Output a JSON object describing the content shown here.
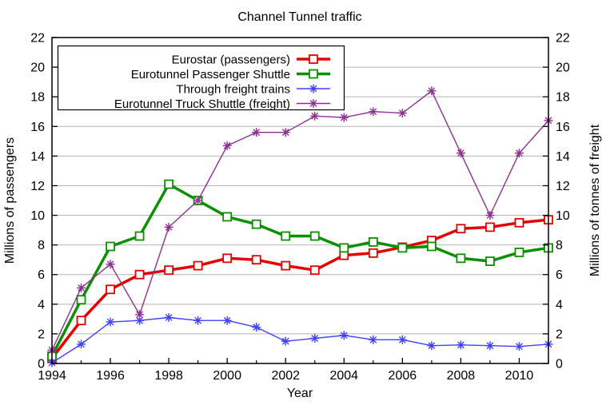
{
  "figure": {
    "background": "#ffffff",
    "grid_color": "#b3b3b3",
    "axis_color": "#000000"
  },
  "title": "Channel Tunnel traffic",
  "axes": {
    "x": {
      "label": "Year",
      "min": 1994,
      "max": 2011,
      "major_tick_labels": [
        "1994",
        "1996",
        "1998",
        "2000",
        "2002",
        "2004",
        "2006",
        "2008",
        "2010"
      ],
      "major_tick_years": [
        1994,
        1996,
        1998,
        2000,
        2002,
        2004,
        2006,
        2008,
        2010
      ],
      "minor_tick_years": [
        1995,
        1997,
        1999,
        2001,
        2003,
        2005,
        2007,
        2009,
        2011
      ]
    },
    "y_left": {
      "label": "Millions of passengers",
      "min": 0,
      "max": 22,
      "tick_values": [
        0,
        2,
        4,
        6,
        8,
        10,
        12,
        14,
        16,
        18,
        20,
        22
      ],
      "tick_labels": [
        "0",
        "2",
        "4",
        "6",
        "8",
        "10",
        "12",
        "14",
        "16",
        "18",
        "20",
        "22"
      ]
    },
    "y_right": {
      "label": "Millions of tonnes of freight",
      "min": 0,
      "max": 22,
      "tick_values": [
        0,
        2,
        4,
        6,
        8,
        10,
        12,
        14,
        16,
        18,
        20,
        22
      ],
      "tick_labels": [
        "0",
        "2",
        "4",
        "6",
        "8",
        "10",
        "12",
        "14",
        "16",
        "18",
        "20",
        "22"
      ]
    }
  },
  "legend": {
    "position": "top-left",
    "entries": [
      "Eurostar (passengers)",
      "Eurotunnel Passenger Shuttle",
      "Through freight trains",
      "Eurotunnel Truck Shuttle (freight)"
    ]
  },
  "chart_data": {
    "type": "line",
    "title": "Channel Tunnel traffic",
    "xlabel": "Year",
    "ylabel_left": "Millions of passengers",
    "ylabel_right": "Millions of tonnes of freight",
    "xlim": [
      1994,
      2011
    ],
    "ylim": [
      0,
      22
    ],
    "grid": true,
    "legend_position": "top-left",
    "x": [
      1994,
      1995,
      1996,
      1997,
      1998,
      1999,
      2000,
      2001,
      2002,
      2003,
      2004,
      2005,
      2006,
      2007,
      2008,
      2009,
      2010,
      2011
    ],
    "series": [
      {
        "name": "Eurostar (passengers)",
        "axis": "left",
        "unit": "millions of passengers",
        "color": "#e50000",
        "marker": "square",
        "line_width": 3.5,
        "values": [
          0.35,
          2.9,
          5.0,
          6.0,
          6.3,
          6.6,
          7.1,
          7.0,
          6.6,
          6.3,
          7.3,
          7.45,
          7.85,
          8.3,
          9.1,
          9.2,
          9.5,
          9.7
        ]
      },
      {
        "name": "Eurotunnel Passenger Shuttle",
        "axis": "left",
        "unit": "millions of passengers",
        "color": "#0a9000",
        "marker": "square",
        "line_width": 3.5,
        "values": [
          0.5,
          4.3,
          7.9,
          8.6,
          12.1,
          11.0,
          9.9,
          9.4,
          8.6,
          8.6,
          7.8,
          8.2,
          7.8,
          7.9,
          7.1,
          6.9,
          7.5,
          7.8
        ]
      },
      {
        "name": "Through freight trains",
        "axis": "right",
        "unit": "millions of tonnes of freight",
        "color": "#4040ff",
        "marker": "asterisk",
        "line_width": 1.4,
        "values": [
          0.05,
          1.3,
          2.8,
          2.9,
          3.1,
          2.9,
          2.9,
          2.45,
          1.5,
          1.7,
          1.9,
          1.6,
          1.6,
          1.2,
          1.25,
          1.2,
          1.15,
          1.3
        ]
      },
      {
        "name": "Eurotunnel Truck Shuttle (freight)",
        "axis": "right",
        "unit": "millions of tonnes of freight",
        "color": "#8e2f93",
        "marker": "asterisk",
        "line_width": 1.4,
        "values": [
          0.9,
          5.1,
          6.7,
          3.3,
          9.2,
          11.0,
          14.7,
          15.6,
          15.6,
          16.7,
          16.6,
          17.0,
          16.9,
          18.4,
          14.2,
          10.0,
          14.2,
          16.4
        ]
      }
    ]
  }
}
